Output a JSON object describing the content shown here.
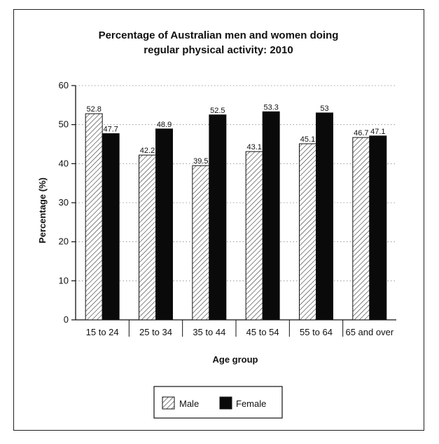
{
  "chart_data": {
    "type": "bar",
    "title_lines": [
      "Percentage of Australian men and women doing",
      "regular physical activity: 2010"
    ],
    "xlabel": "Age group",
    "ylabel": "Percentage (%)",
    "ylim": [
      0,
      60
    ],
    "yticks": [
      "0",
      "10",
      "20",
      "30",
      "40",
      "50",
      "60"
    ],
    "categories": [
      "15 to 24",
      "25 to 34",
      "35 to 44",
      "45 to 54",
      "55 to 64",
      "65 and over"
    ],
    "series": [
      {
        "name": "Male",
        "values": [
          52.8,
          42.2,
          39.5,
          43.1,
          45.1,
          46.7
        ],
        "labels": [
          "52.8",
          "42.2",
          "39.5",
          "43.1",
          "45.1",
          "46.7"
        ],
        "pattern": "hatched",
        "color": "#ffffff"
      },
      {
        "name": "Female",
        "values": [
          47.7,
          48.9,
          52.5,
          53.3,
          53,
          47.1
        ],
        "labels": [
          "47.7",
          "48.9",
          "52.5",
          "53.3",
          "53",
          "47.1"
        ],
        "pattern": "solid",
        "color": "#0a0a0a"
      }
    ],
    "grid": "dotted horizontal",
    "legend_position": "bottom-center"
  }
}
